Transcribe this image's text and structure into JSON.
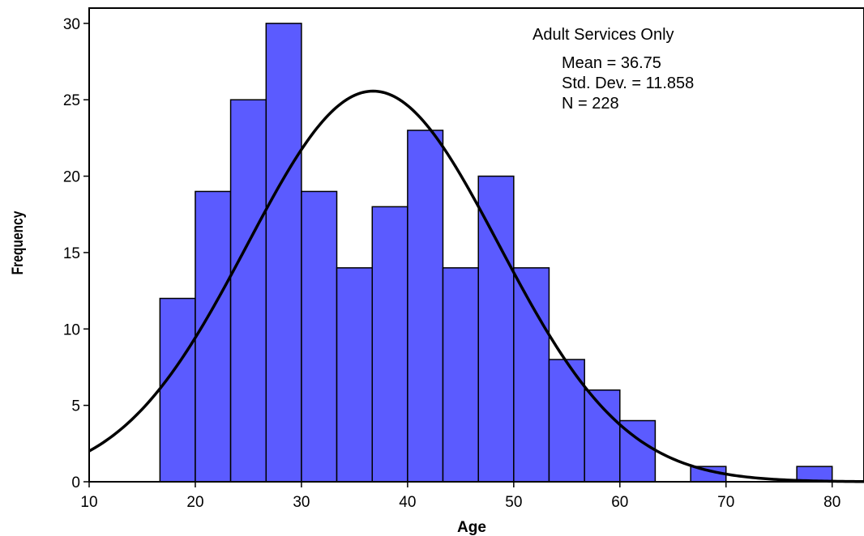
{
  "chart_data": {
    "type": "bar",
    "subtype": "histogram",
    "title": "",
    "xlabel": "Age",
    "ylabel": "Frequency",
    "xlim": [
      10,
      83
    ],
    "ylim": [
      0,
      31
    ],
    "xticks": [
      10,
      20,
      30,
      40,
      50,
      60,
      70,
      80
    ],
    "yticks": [
      0,
      5,
      10,
      15,
      20,
      25,
      30
    ],
    "bar_color": "#5b5bff",
    "bar_edge_color": "#000000",
    "bins": [
      {
        "start": 16.67,
        "end": 20.0,
        "value": 12
      },
      {
        "start": 20.0,
        "end": 23.33,
        "value": 19
      },
      {
        "start": 23.33,
        "end": 26.67,
        "value": 25
      },
      {
        "start": 26.67,
        "end": 30.0,
        "value": 30
      },
      {
        "start": 30.0,
        "end": 33.33,
        "value": 19
      },
      {
        "start": 33.33,
        "end": 36.67,
        "value": 14
      },
      {
        "start": 36.67,
        "end": 40.0,
        "value": 18
      },
      {
        "start": 40.0,
        "end": 43.33,
        "value": 23
      },
      {
        "start": 43.33,
        "end": 46.67,
        "value": 14
      },
      {
        "start": 46.67,
        "end": 50.0,
        "value": 20
      },
      {
        "start": 50.0,
        "end": 53.33,
        "value": 14
      },
      {
        "start": 53.33,
        "end": 56.67,
        "value": 8
      },
      {
        "start": 56.67,
        "end": 60.0,
        "value": 6
      },
      {
        "start": 60.0,
        "end": 63.33,
        "value": 4
      },
      {
        "start": 63.33,
        "end": 66.67,
        "value": 0
      },
      {
        "start": 66.67,
        "end": 70.0,
        "value": 1
      },
      {
        "start": 70.0,
        "end": 73.33,
        "value": 0
      },
      {
        "start": 73.33,
        "end": 76.67,
        "value": 0
      },
      {
        "start": 76.67,
        "end": 80.0,
        "value": 1
      }
    ],
    "normal_curve": {
      "mean": 36.75,
      "std": 11.858,
      "n": 228,
      "bin_width": 3.333
    },
    "annotations": {
      "group": "Adult Services Only",
      "mean": "Mean = 36.75",
      "std": "Std. Dev. = 11.858",
      "n": "N = 228"
    },
    "grid": false
  }
}
